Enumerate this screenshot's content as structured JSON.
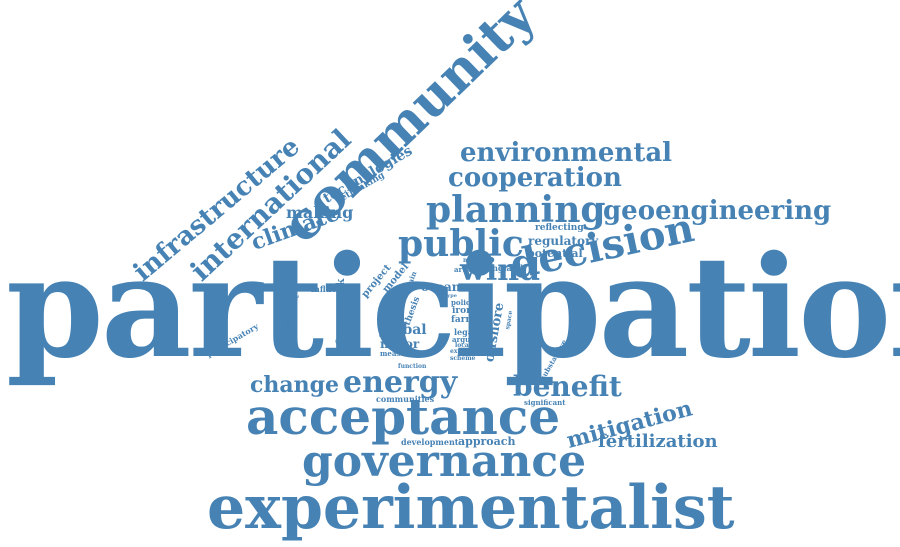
{
  "words": {
    "participation": "participation",
    "experimentalist": "experimentalist",
    "governance": "governance",
    "acceptance": "acceptance",
    "community": "community",
    "decision": "decision",
    "planning": "planning",
    "public": "public",
    "wind": "wind",
    "environmental": "environmental",
    "cooperation": "cooperation",
    "geoengineering": "geoengineering",
    "infrastructure": "infrastructure",
    "international": "international",
    "climate": "climate",
    "making": "making",
    "technologies": "technologies",
    "rethinking": "rethinking",
    "energy": "energy",
    "change": "change",
    "benefit": "benefit",
    "mitigation": "mitigation",
    "fertilization": "fertilization",
    "regulatory": "regulatory",
    "potential": "potential",
    "reflecting": "reflecting",
    "global": "global",
    "major": "major",
    "ocean": "ocean",
    "approach": "approach",
    "development": "development",
    "communities": "communities",
    "influence": "influence",
    "framework": "framework",
    "participatory": "participatory",
    "engagement": "engagement",
    "develop": "develop",
    "project": "project",
    "model": "model",
    "remain": "remain",
    "thesis": "thesis",
    "article": "article",
    "england": "england",
    "member": "member",
    "offshore": "offshore",
    "space": "space",
    "substantive": "substantive",
    "significant": "significant",
    "iron": "iron",
    "farm": "farm",
    "policy": "policy",
    "legal": "legal",
    "argue": "argue",
    "local": "local",
    "explore": "explore",
    "scheme": "scheme",
    "measure": "measure",
    "function": "function",
    "type": "type"
  },
  "colors": {
    "word": "#4682b4",
    "background": "#ffffff"
  }
}
